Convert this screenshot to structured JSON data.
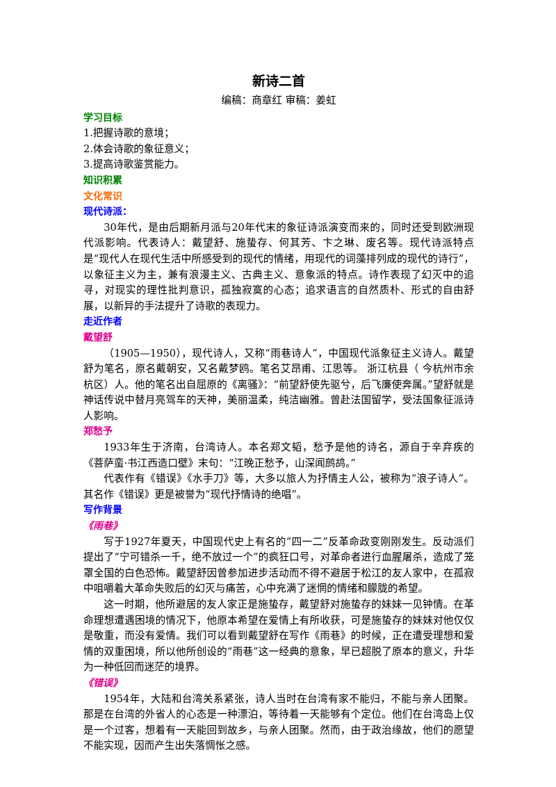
{
  "header": {
    "title": "新诗二首",
    "byline": "编稿：商章红 审稿：姜虹"
  },
  "goals": {
    "heading": "学习目标",
    "items": [
      "1.把握诗歌的意境；",
      "2.体会诗歌的象征意义；",
      "3.提高诗歌鉴赏能力。"
    ]
  },
  "knowledge": {
    "heading": "知识积累",
    "subheading": "文化常识",
    "topic": "现代诗派：",
    "paragraph": "30年代，是由后期新月派与20年代末的象征诗派演变而来的，同时还受到欧洲现代派影响。代表诗人：戴望舒、施蛰存、何其芳、卞之琳、废名等。现代诗派特点是“现代人在现代生活中所感受到的现代的情绪，用现代的词藻排列成的现代的诗行”，以象征主义为主，兼有浪漫主义、古典主义、意象派的特点。诗作表现了幻灭中的追寻，对现实的理性批判意识，孤独寂寞的心态；追求语言的自然质朴、形式的自由舒展，以新异的手法提升了诗歌的表现力。"
  },
  "authors": {
    "heading": "走近作者",
    "people": [
      {
        "name": "戴望舒",
        "paragraphs": [
          "（1905—1950），现代诗人，又称“雨巷诗人”，中国现代派象征主义诗人。戴望舒为笔名，原名戴朝安，又名戴梦鸥。笔名艾昂甫、江思等。 浙江杭县（ 今杭州市余杭区）人。他的笔名出自屈原的《离骚》：“前望舒使先驱兮，后飞廉使奔属。”望舒就是神话传说中替月亮驾车的天神，美丽温柔，纯洁幽雅。曾赴法国留学，受法国象征派诗人影响。"
        ]
      },
      {
        "name": "郑愁予",
        "paragraphs": [
          "1933年生于济南，台湾诗人。本名郑文韬，愁予是他的诗名，源自于辛弃疾的《菩萨蛮·书江西造口壁》末句：“江晚正愁予，山深闻鹧鸪。”",
          "代表作有《错误》《水手刀》等，大多以旅人为抒情主人公，被称为“浪子诗人”。其名作《错误》更是被誉为“现代抒情诗的绝唱”。"
        ]
      }
    ]
  },
  "background": {
    "heading": "写作背景",
    "poems": [
      {
        "title": "《雨巷》",
        "paragraphs": [
          "写于1927年夏天，中国现代史上有名的“四一二”反革命政变刚刚发生。反动派们提出了“宁可错杀一千，绝不放过一个”的疯狂口号，对革命者进行血腥屠杀，造成了笼罩全国的白色恐怖。戴望舒因曾参加进步活动而不得不避居于松江的友人家中，在孤寂中咀嚼着大革命失败后的幻灭与痛苦，心中充满了迷惘的情绪和朦胧的希望。",
          "这一时期，他所避居的友人家正是施蛰存，戴望舒对施蛰存的妹妹一见钟情。在革命理想遭遇困境的情况下，他原本希望在爱情上有所收获，可是施蛰存的妹妹对他仅仅是敬重，而没有爱情。我们可以看到戴望舒在写作《雨巷》的时候，正在遭受理想和爱情的双重困境，所以他所创设的“雨巷”这一经典的意象，早已超脱了原本的意义，升华为一种低回而迷茫的境界。"
        ]
      },
      {
        "title": "《错误》",
        "paragraphs": [
          "1954年，大陆和台湾关系紧张，诗人当时在台湾有家不能归，不能与亲人团聚。那是在台湾的外省人的心态是一种漂泊，等待着一天能够有个定位。他们在台湾岛上仅是一个过客，想着有一天能回到故乡，与亲人团聚。然而，由于政治缘故，他们的愿望不能实现，因而产生出失落惆怅之感。"
        ]
      }
    ]
  }
}
